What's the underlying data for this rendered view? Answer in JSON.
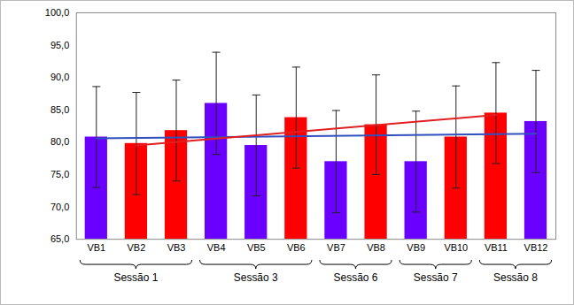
{
  "chart_data": {
    "type": "bar",
    "categories": [
      "VB1",
      "VB2",
      "VB3",
      "VB4",
      "VB5",
      "VB6",
      "VB7",
      "VB8",
      "VB9",
      "VB10",
      "VB11",
      "VB12"
    ],
    "values": [
      80.8,
      79.8,
      81.8,
      86.0,
      79.5,
      83.8,
      77.0,
      82.7,
      77.0,
      80.8,
      84.5,
      83.2
    ],
    "errors": [
      7.8,
      7.9,
      7.8,
      7.9,
      7.8,
      7.8,
      7.9,
      7.7,
      7.8,
      7.9,
      7.8,
      7.9
    ],
    "colors": [
      "#6a00ff",
      "#ff0000",
      "#ff0000",
      "#6a00ff",
      "#6a00ff",
      "#ff0000",
      "#6a00ff",
      "#ff0000",
      "#6a00ff",
      "#ff0000",
      "#ff0000",
      "#6a00ff"
    ],
    "trend_lines": [
      {
        "color": "#3050c0",
        "categories": [
          "VB1",
          "VB12"
        ],
        "values": [
          80.6,
          81.3
        ]
      },
      {
        "color": "#e02020",
        "categories": [
          "VB2",
          "VB11"
        ],
        "values": [
          79.5,
          84.2
        ]
      }
    ],
    "groups": [
      {
        "label": "Sessão 1",
        "categories": [
          "VB1",
          "VB2",
          "VB3"
        ]
      },
      {
        "label": "Sessão 3",
        "categories": [
          "VB4",
          "VB5",
          "VB6"
        ]
      },
      {
        "label": "Sessão 6",
        "categories": [
          "VB7",
          "VB8"
        ]
      },
      {
        "label": "Sessão 7",
        "categories": [
          "VB9",
          "VB10"
        ]
      },
      {
        "label": "Sessão 8",
        "categories": [
          "VB11",
          "VB12"
        ]
      }
    ],
    "ylim": [
      65,
      100
    ],
    "yticks": [
      {
        "value": 65,
        "label": "65,0"
      },
      {
        "value": 70,
        "label": "70,0"
      },
      {
        "value": 75,
        "label": "75,0"
      },
      {
        "value": 80,
        "label": "80,0"
      },
      {
        "value": 85,
        "label": "85,0"
      },
      {
        "value": 90,
        "label": "90,0"
      },
      {
        "value": 95,
        "label": "95,0"
      },
      {
        "value": 100,
        "label": "100,0"
      }
    ],
    "grid": false
  }
}
